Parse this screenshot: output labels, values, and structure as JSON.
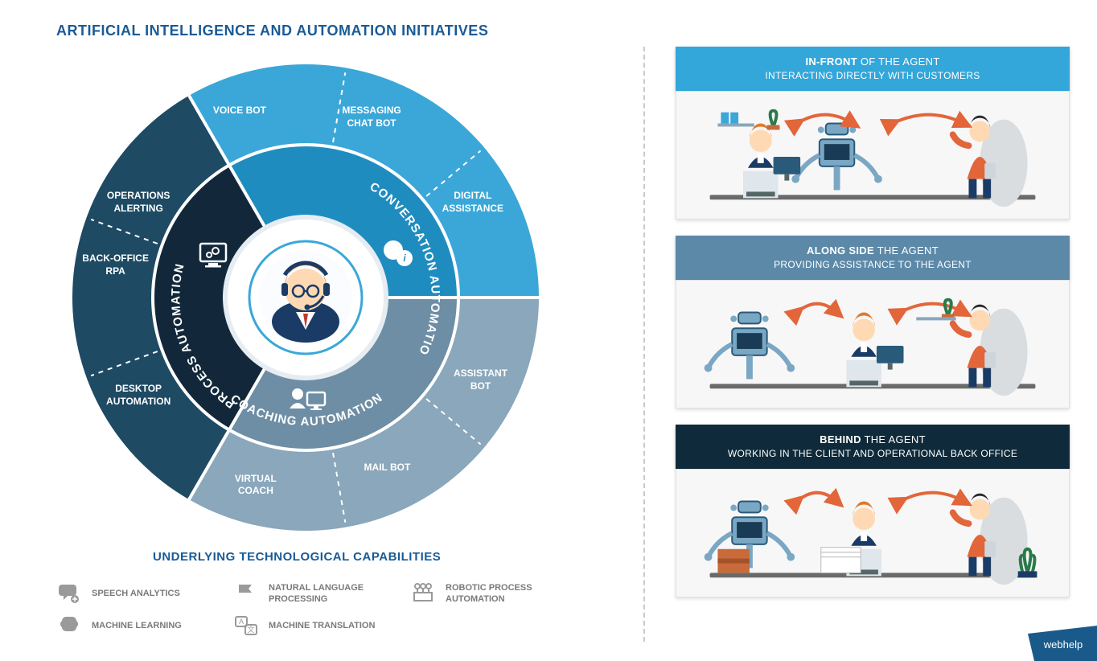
{
  "title": "ARTIFICIAL INTELLIGENCE AND AUTOMATION INITIATIVES",
  "title_color": "#1a5a96",
  "subtitle": "UNDERLYING TECHNOLOGICAL CAPABILITIES",
  "subtitle_color": "#1a5a96",
  "background_color": "#ffffff",
  "wheel": {
    "outer_segments": [
      {
        "label": "OPERATIONS\nALERTING",
        "color": "#1e4a63",
        "angle_mid": -60
      },
      {
        "label": "VOICE BOT",
        "color": "#3aa7d8",
        "angle_mid": -20
      },
      {
        "label": "MESSAGING\nCHAT BOT",
        "color": "#3aa7d8",
        "angle_mid": 20
      },
      {
        "label": "DIGITAL\nASSISTANCE",
        "color": "#3aa7d8",
        "angle_mid": 60
      },
      {
        "label": "ASSISTANT\nBOT",
        "color": "#8aa7bb",
        "angle_mid": 115
      },
      {
        "label": "MAIL BOT",
        "color": "#8aa7bb",
        "angle_mid": 155
      },
      {
        "label": "VIRTUAL\nCOACH",
        "color": "#8aa7bb",
        "angle_mid": 195
      },
      {
        "label": "DESKTOP\nAUTOMATION",
        "color": "#1e4a63",
        "angle_mid": 240
      },
      {
        "label": "BACK-OFFICE\nRPA",
        "color": "#1e4a63",
        "angle_mid": 280
      }
    ],
    "inner_rings": [
      {
        "label": "PROCESS AUTOMATION",
        "color": "#12283a",
        "start": 210,
        "end": 330
      },
      {
        "label": "CONVERSATION AUTOMATION",
        "color": "#1f8cc0",
        "start": -30,
        "end": 90
      },
      {
        "label": "COACHING AUTOMATION",
        "color": "#6d8ea4",
        "start": 90,
        "end": 210
      }
    ],
    "center_fill": "#ffffff",
    "center_border": "#1f8cc0",
    "separator_color": "#ffffff",
    "outer_radius": 290,
    "ring_radius": 190,
    "inner_radius": 100
  },
  "capabilities": [
    {
      "label": "SPEECH ANALYTICS",
      "icon": "speech",
      "row": 0
    },
    {
      "label": "NATURAL LANGUAGE PROCESSING",
      "icon": "flag",
      "row": 0
    },
    {
      "label": "ROBOTIC PROCESS AUTOMATION",
      "icon": "robot",
      "row": 0
    },
    {
      "label": "MACHINE LEARNING",
      "icon": "brain",
      "row": 1
    },
    {
      "label": "MACHINE TRANSLATION",
      "icon": "translate",
      "row": 1
    }
  ],
  "cap_icon_color": "#9a9a9a",
  "panels": [
    {
      "title_bold": "IN-FRONT",
      "title_rest": "OF THE AGENT",
      "sub": "INTERACTING DIRECTLY WITH CUSTOMERS",
      "bg": "#33a6da"
    },
    {
      "title_bold": "ALONG SIDE",
      "title_rest": "THE AGENT",
      "sub": "PROVIDING ASSISTANCE TO THE AGENT",
      "bg": "#5c89a8"
    },
    {
      "title_bold": "BEHIND",
      "title_rest": "THE AGENT",
      "sub": "WORKING IN THE CLIENT AND OPERATIONAL BACK OFFICE",
      "bg": "#0f2a3a"
    }
  ],
  "panel_text_color": "#ffffff",
  "arrow_color": "#e2663a",
  "logo_text": "webhelp",
  "logo_bg": "#1a5a8a",
  "logo_text_color": "#ffffff"
}
